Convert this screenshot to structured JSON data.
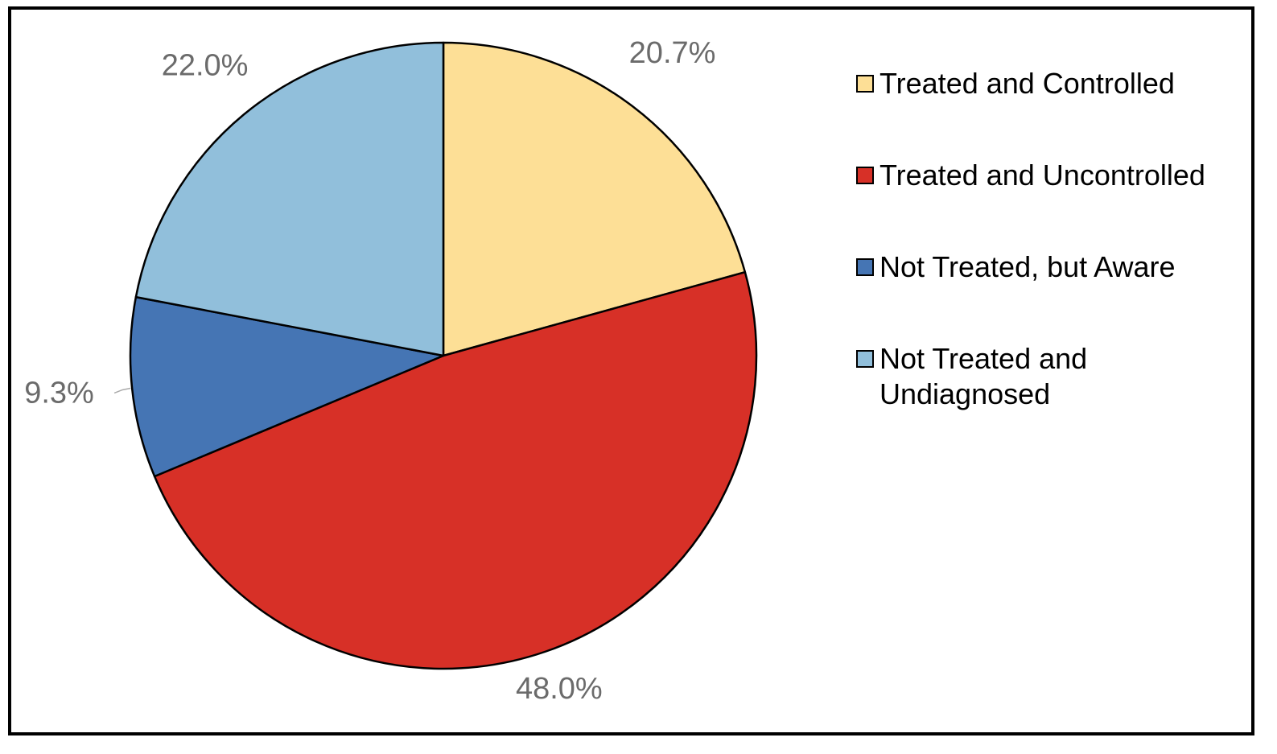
{
  "chart_data": {
    "type": "pie",
    "title": "",
    "categories": [
      "Treated and Controlled",
      "Treated and Uncontrolled",
      "Not Treated, but Aware",
      "Not Treated and Undiagnosed"
    ],
    "values": [
      20.7,
      48.0,
      9.3,
      22.0
    ],
    "value_labels": [
      "20.7%",
      "48.0%",
      "9.3%",
      "22.0%"
    ],
    "colors": [
      "#FDDF96",
      "#D73027",
      "#4575B4",
      "#91BFDB"
    ],
    "start_angle_deg": 0,
    "direction": "clockwise",
    "legend_position": "right"
  },
  "legend": {
    "items": [
      {
        "label": "Treated and Controlled",
        "color": "#FDDF96"
      },
      {
        "label": "Treated and Uncontrolled",
        "color": "#D73027"
      },
      {
        "label": "Not Treated, but Aware",
        "color": "#4575B4"
      },
      {
        "label": "Not Treated and Undiagnosed",
        "color": "#91BFDB"
      }
    ]
  }
}
